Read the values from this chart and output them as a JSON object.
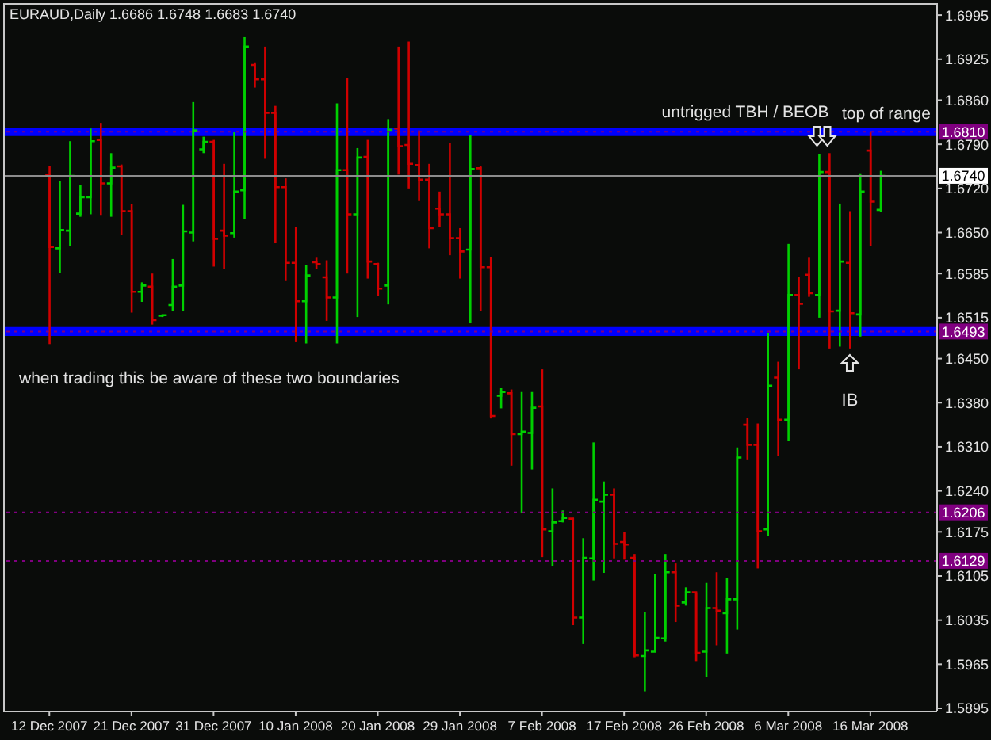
{
  "chart_data": {
    "type": "candlestick",
    "title": "EURAUD,Daily 1.6686 1.6748 1.6683 1.6740",
    "categories": [
      "12 Dec 2007",
      null,
      null,
      null,
      null,
      null,
      null,
      null,
      "21 Dec 2007",
      null,
      null,
      null,
      null,
      null,
      null,
      null,
      "31 Dec 2007",
      null,
      null,
      null,
      null,
      null,
      null,
      null,
      "10 Jan 2008",
      null,
      null,
      null,
      null,
      null,
      null,
      null,
      "20 Jan 2008",
      null,
      null,
      null,
      null,
      null,
      null,
      null,
      "29 Jan 2008",
      null,
      null,
      null,
      null,
      null,
      null,
      null,
      "7 Feb 2008",
      null,
      null,
      null,
      null,
      null,
      null,
      null,
      "17 Feb 2008",
      null,
      null,
      null,
      null,
      null,
      null,
      null,
      "26 Feb 2008",
      null,
      null,
      null,
      null,
      null,
      null,
      null,
      "6 Mar 2008",
      null,
      null,
      null,
      null,
      null,
      null,
      null,
      "16 Mar 2008",
      null
    ],
    "ohlc": [
      [
        1.6742,
        1.6755,
        1.6473,
        1.6627
      ],
      [
        1.6625,
        1.6732,
        1.6586,
        1.6654
      ],
      [
        1.6653,
        1.6795,
        1.6628,
        1.674
      ],
      [
        1.668,
        1.6725,
        1.6675,
        1.6706
      ],
      [
        1.6706,
        1.6815,
        1.6679,
        1.6795
      ],
      [
        1.6797,
        1.6824,
        1.6678,
        1.6728
      ],
      [
        1.6728,
        1.6776,
        1.6675,
        1.6753
      ],
      [
        1.6755,
        1.6758,
        1.6646,
        1.6684
      ],
      [
        1.6684,
        1.6695,
        1.6523,
        1.6556
      ],
      [
        1.6556,
        1.6571,
        1.654,
        1.6566
      ],
      [
        1.6564,
        1.6585,
        1.6504,
        1.6511
      ],
      [
        1.6518,
        1.652,
        1.6516,
        1.6519
      ],
      [
        1.6535,
        1.6608,
        1.6525,
        1.6564
      ],
      [
        1.6566,
        1.6694,
        1.6525,
        1.6652
      ],
      [
        1.665,
        1.6857,
        1.6636,
        1.6812
      ],
      [
        1.6782,
        1.6802,
        1.6776,
        1.6794
      ],
      [
        1.6794,
        1.6797,
        1.6596,
        1.664
      ],
      [
        1.6653,
        1.6759,
        1.6592,
        1.6645
      ],
      [
        1.6649,
        1.6809,
        1.6642,
        1.6715
      ],
      [
        1.6717,
        1.696,
        1.6671,
        1.6945
      ],
      [
        1.6916,
        1.692,
        1.688,
        1.6893
      ],
      [
        1.6893,
        1.6945,
        1.6767,
        1.684
      ],
      [
        1.684,
        1.6851,
        1.6633,
        1.6722
      ],
      [
        1.6722,
        1.6736,
        1.6573,
        1.6602
      ],
      [
        1.6602,
        1.6659,
        1.6476,
        1.6541
      ],
      [
        1.6541,
        1.6598,
        1.6474,
        1.6582
      ],
      [
        1.6603,
        1.661,
        1.6592,
        1.66
      ],
      [
        1.6579,
        1.6606,
        1.651,
        1.6547
      ],
      [
        1.6547,
        1.6855,
        1.6474,
        1.6749
      ],
      [
        1.6749,
        1.6895,
        1.6585,
        1.6679
      ],
      [
        1.6679,
        1.6784,
        1.6516,
        1.6769
      ],
      [
        1.677,
        1.6797,
        1.6577,
        1.6604
      ],
      [
        1.66,
        1.6602,
        1.655,
        1.6561
      ],
      [
        1.6566,
        1.683,
        1.6536,
        1.6813
      ],
      [
        1.6815,
        1.6945,
        1.6742,
        1.6787
      ],
      [
        1.6789,
        1.6953,
        1.672,
        1.6759
      ],
      [
        1.6757,
        1.6812,
        1.67,
        1.6734
      ],
      [
        1.6734,
        1.6759,
        1.6625,
        1.6657
      ],
      [
        1.6688,
        1.6715,
        1.6659,
        1.6679
      ],
      [
        1.6679,
        1.6792,
        1.6614,
        1.6641
      ],
      [
        1.6641,
        1.6657,
        1.6577,
        1.662
      ],
      [
        1.6623,
        1.6805,
        1.6506,
        1.6751
      ],
      [
        1.6752,
        1.6756,
        1.6525,
        1.6595
      ],
      [
        1.6595,
        1.6611,
        1.6355,
        1.6359
      ],
      [
        1.6391,
        1.6403,
        1.6371,
        1.6397
      ],
      [
        1.6395,
        1.6401,
        1.628,
        1.633
      ],
      [
        1.633,
        1.6397,
        1.6205,
        1.6334
      ],
      [
        1.6332,
        1.6397,
        1.6274,
        1.6372
      ],
      [
        1.6374,
        1.6433,
        1.6135,
        1.6179
      ],
      [
        1.6176,
        1.6244,
        1.6121,
        1.619
      ],
      [
        1.6192,
        1.6209,
        1.619,
        1.6197
      ],
      [
        1.6196,
        1.6197,
        1.6027,
        1.6039
      ],
      [
        1.6039,
        1.6165,
        1.5997,
        1.6134
      ],
      [
        1.6133,
        1.6317,
        1.6098,
        1.6226
      ],
      [
        1.6223,
        1.6255,
        1.611,
        1.6234
      ],
      [
        1.6234,
        1.6244,
        1.6133,
        1.6156
      ],
      [
        1.6159,
        1.6175,
        1.6131,
        1.6155
      ],
      [
        1.6134,
        1.614,
        1.5976,
        1.5979
      ],
      [
        1.5978,
        1.6048,
        1.5922,
        1.5987
      ],
      [
        1.5985,
        1.6108,
        1.5985,
        1.6007
      ],
      [
        1.6006,
        1.614,
        1.6001,
        1.6111
      ],
      [
        1.6111,
        1.6125,
        1.6032,
        1.6058
      ],
      [
        1.6063,
        1.6087,
        1.6058,
        1.6079
      ],
      [
        1.6079,
        1.6079,
        1.597,
        1.5983
      ],
      [
        1.5985,
        1.6094,
        1.5945,
        1.6054
      ],
      [
        1.6054,
        1.6111,
        1.5995,
        1.605
      ],
      [
        1.6046,
        1.6102,
        1.5982,
        1.6068
      ],
      [
        1.6068,
        1.6309,
        1.602,
        1.6293
      ],
      [
        1.6345,
        1.6356,
        1.629,
        1.6313
      ],
      [
        1.6313,
        1.6347,
        1.6117,
        1.6176
      ],
      [
        1.6179,
        1.6491,
        1.6169,
        1.6407
      ],
      [
        1.642,
        1.6445,
        1.6296,
        1.6353
      ],
      [
        1.6353,
        1.6632,
        1.632,
        1.6551
      ],
      [
        1.6551,
        1.6579,
        1.6433,
        1.6537
      ],
      [
        1.6583,
        1.661,
        1.6548,
        1.6554
      ],
      [
        1.6551,
        1.6774,
        1.6515,
        1.6746
      ],
      [
        1.6746,
        1.6776,
        1.6466,
        1.6525
      ],
      [
        1.6526,
        1.6696,
        1.6469,
        1.6604
      ],
      [
        1.6602,
        1.6684,
        1.6466,
        1.6522
      ],
      [
        1.652,
        1.6744,
        1.6485,
        1.6715
      ],
      [
        1.678,
        1.6809,
        1.6628,
        1.6699
      ],
      [
        1.6686,
        1.6748,
        1.6683,
        1.674
      ]
    ],
    "colors": [
      "#d00000",
      "#00d000",
      "#00d000",
      "#00d000",
      "#00d000",
      "#d00000",
      "#00d000",
      "#d00000",
      "#d00000",
      "#00d000",
      "#d00000",
      "#00d000",
      "#00d000",
      "#00d000",
      "#00d000",
      "#00d000",
      "#d00000",
      "#d00000",
      "#00d000",
      "#00d000",
      "#d00000",
      "#d00000",
      "#d00000",
      "#d00000",
      "#d00000",
      "#00d000",
      "#d00000",
      "#d00000",
      "#00d000",
      "#d00000",
      "#00d000",
      "#d00000",
      "#d00000",
      "#00d000",
      "#d00000",
      "#d00000",
      "#d00000",
      "#d00000",
      "#d00000",
      "#d00000",
      "#d00000",
      "#00d000",
      "#d00000",
      "#d00000",
      "#00d000",
      "#d00000",
      "#00d000",
      "#00d000",
      "#d00000",
      "#00d000",
      "#00d000",
      "#d00000",
      "#00d000",
      "#00d000",
      "#00d000",
      "#d00000",
      "#d00000",
      "#d00000",
      "#00d000",
      "#00d000",
      "#00d000",
      "#d00000",
      "#00d000",
      "#d00000",
      "#00d000",
      "#d00000",
      "#00d000",
      "#00d000",
      "#d00000",
      "#d00000",
      "#00d000",
      "#d00000",
      "#00d000",
      "#d00000",
      "#d00000",
      "#00d000",
      "#d00000",
      "#00d000",
      "#d00000",
      "#00d000",
      "#d00000",
      "#00d000"
    ],
    "ylim": [
      1.589,
      1.7014
    ],
    "yticks": [
      1.6995,
      1.6925,
      {
        "value": 1.686,
        "label": "1.6860"
      },
      {
        "value": 1.679,
        "label": "1.6790"
      },
      {
        "value": 1.672,
        "label": "1.6720"
      },
      {
        "value": 1.665,
        "label": "1.6650"
      },
      1.6585,
      1.6515,
      {
        "value": 1.645,
        "label": "1.6450"
      },
      {
        "value": 1.638,
        "label": "1.6380"
      },
      {
        "value": 1.631,
        "label": "1.6310"
      },
      {
        "value": 1.624,
        "label": "1.6240"
      },
      1.6175,
      1.6105,
      1.6035,
      1.5965,
      1.5895
    ],
    "bands": [
      {
        "axis": "y",
        "from": 1.6803,
        "to": 1.6816,
        "color": "#0000ff"
      },
      {
        "axis": "y",
        "from": 1.6486,
        "to": 1.65,
        "color": "#0000ff"
      }
    ],
    "ref_lines": [
      {
        "axis": "y",
        "value": 1.681,
        "label": "1.6810",
        "color": "#800080",
        "line_style": "dotted"
      },
      {
        "axis": "y",
        "value": 1.674,
        "label": "1.6740",
        "color": "#8c8c8c",
        "line_style": "solid"
      },
      {
        "axis": "y",
        "value": 1.6493,
        "label": "1.6493",
        "color": "#800080",
        "line_style": "dotted"
      },
      {
        "axis": "y",
        "value": 1.6206,
        "label": "1.6206",
        "color": "#800080",
        "line_style": "dotted"
      },
      {
        "axis": "y",
        "value": 1.6129,
        "label": "1.6129",
        "color": "#800080",
        "line_style": "dotted"
      }
    ],
    "annotations": [
      "untrigged TBH / BEOB",
      "top of range",
      "when trading this be aware of these two boundaries",
      "IB"
    ]
  }
}
